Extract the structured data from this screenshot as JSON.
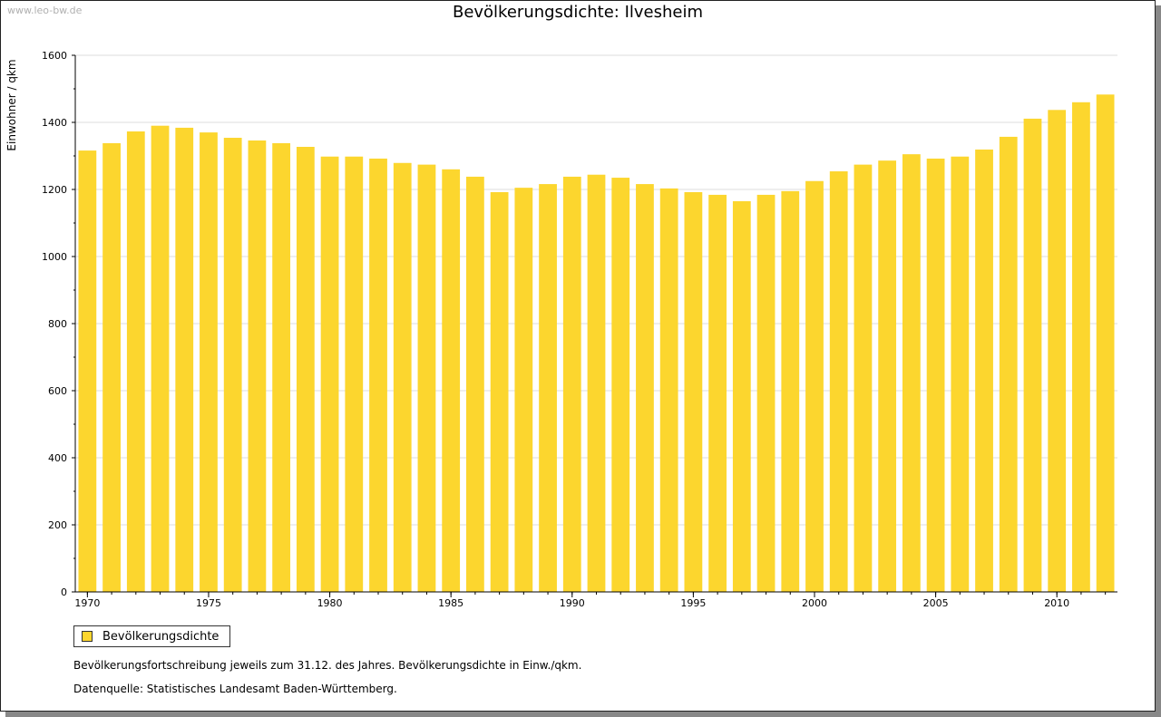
{
  "watermark": "www.leo-bw.de",
  "notes": {
    "line1": "Bevölkerungsfortschreibung jeweils zum 31.12. des Jahres. Bevölkerungsdichte in Einw./qkm.",
    "line2": "Datenquelle: Statistisches Landesamt Baden-Württemberg."
  },
  "colors": {
    "bar": "#fcd62e",
    "grid": "#dddddd",
    "axis": "#000000"
  },
  "chart_data": {
    "type": "bar",
    "title": "Bevölkerungsdichte: Ilvesheim",
    "xlabel": "",
    "ylabel": "Einwohner / qkm",
    "ylim": [
      0,
      1600
    ],
    "yticks": [
      0,
      200,
      400,
      600,
      800,
      1000,
      1200,
      1400,
      1600
    ],
    "xtick_labels": [
      "1970",
      "1975",
      "1980",
      "1985",
      "1990",
      "1995",
      "2000",
      "2005",
      "2010"
    ],
    "grid": true,
    "legend_position": "bottom-left",
    "categories": [
      1970,
      1971,
      1972,
      1973,
      1974,
      1975,
      1976,
      1977,
      1978,
      1979,
      1980,
      1981,
      1982,
      1983,
      1984,
      1985,
      1986,
      1987,
      1988,
      1989,
      1990,
      1991,
      1992,
      1993,
      1994,
      1995,
      1996,
      1997,
      1998,
      1999,
      2000,
      2001,
      2002,
      2003,
      2004,
      2005,
      2006,
      2007,
      2008,
      2009,
      2010,
      2011,
      2012
    ],
    "series": [
      {
        "name": "Bevölkerungsdichte",
        "values": [
          1316,
          1338,
          1373,
          1390,
          1384,
          1370,
          1354,
          1346,
          1338,
          1327,
          1298,
          1298,
          1292,
          1279,
          1274,
          1260,
          1238,
          1192,
          1205,
          1216,
          1238,
          1244,
          1235,
          1216,
          1203,
          1192,
          1184,
          1165,
          1184,
          1195,
          1225,
          1254,
          1274,
          1286,
          1305,
          1292,
          1298,
          1319,
          1357,
          1411,
          1437,
          1460,
          1483
        ]
      }
    ]
  }
}
